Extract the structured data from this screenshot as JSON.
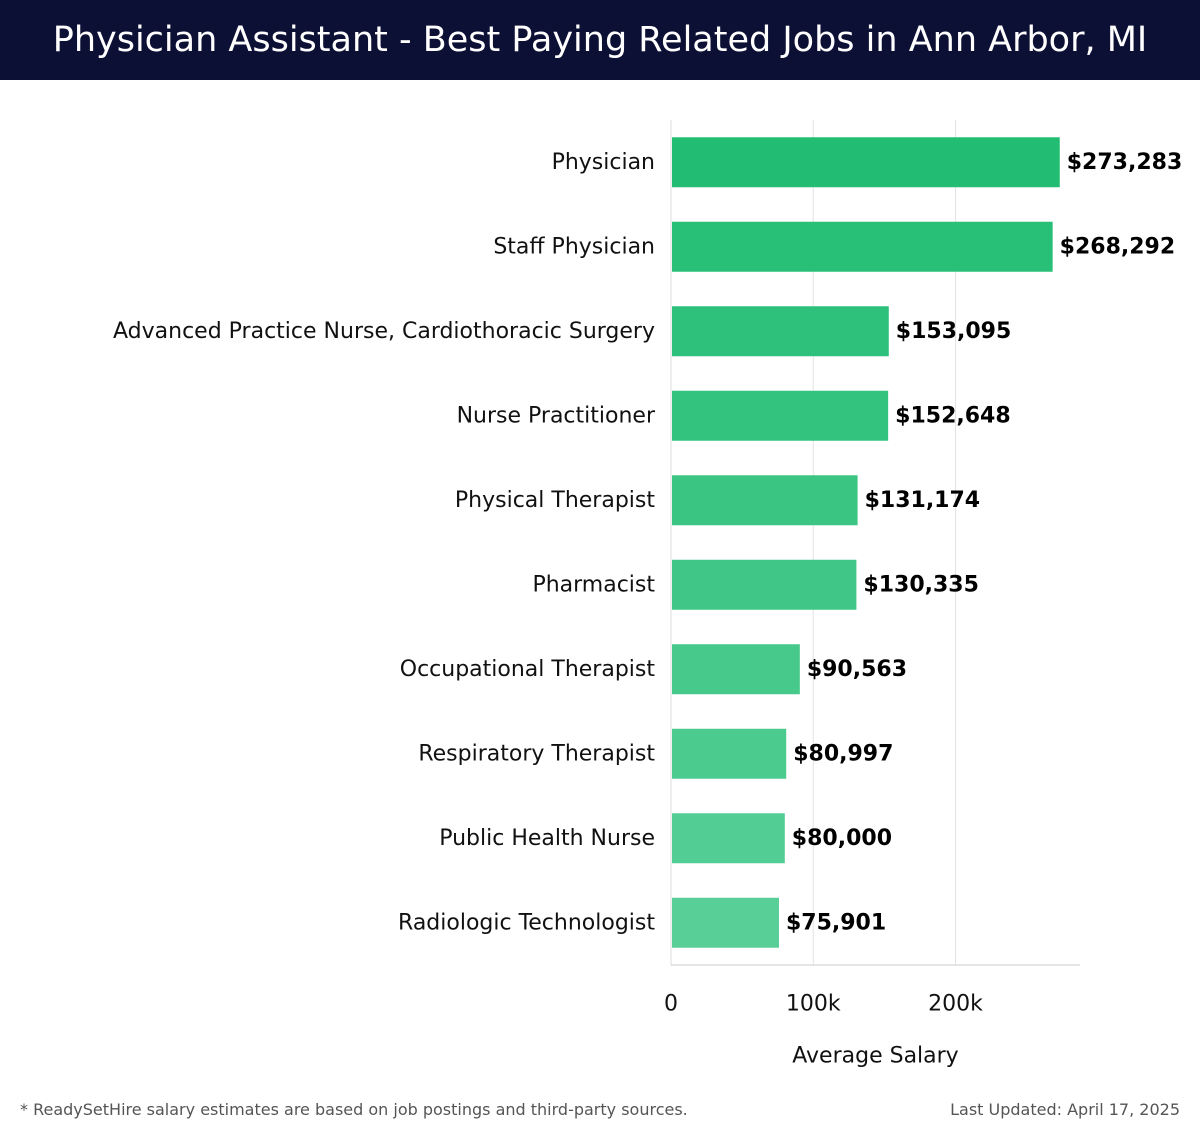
{
  "header": {
    "title": "Physician Assistant - Best Paying Related Jobs in Ann Arbor, MI"
  },
  "footer": {
    "note": "* ReadySetHire salary estimates are based on job postings and third-party sources.",
    "updated": "Last Updated: April 17, 2025"
  },
  "colors": {
    "header_bg": "#0d1035",
    "bar_dark": "#22bd73",
    "bar_light": "#58cf97"
  },
  "chart_data": {
    "type": "bar",
    "orientation": "horizontal",
    "categories": [
      "Physician",
      "Staff Physician",
      "Advanced Practice Nurse, Cardiothoracic Surgery",
      "Nurse Practitioner",
      "Physical Therapist",
      "Pharmacist",
      "Occupational Therapist",
      "Respiratory Therapist",
      "Public Health Nurse",
      "Radiologic Technologist"
    ],
    "values": [
      273283,
      268292,
      153095,
      152648,
      131174,
      130335,
      90563,
      80997,
      80000,
      75901
    ],
    "value_labels": [
      "$273,283",
      "$268,292",
      "$153,095",
      "$152,648",
      "$131,174",
      "$130,335",
      "$90,563",
      "$80,997",
      "$80,000",
      "$75,901"
    ],
    "xlabel": "Average Salary",
    "ylabel": "",
    "xlim": [
      0,
      289000
    ],
    "xticks": [
      0,
      100000,
      200000
    ],
    "xtick_labels": [
      "0",
      "100k",
      "200k"
    ],
    "grid": true,
    "legend": false
  }
}
